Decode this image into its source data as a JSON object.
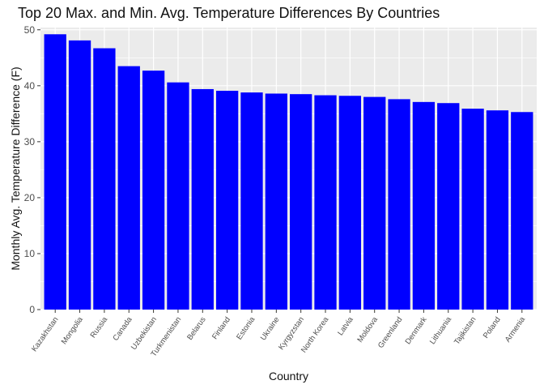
{
  "chart_data": {
    "type": "bar",
    "title": "Top 20 Max. and Min. Avg. Temperature Differences By Countries",
    "xlabel": "Country",
    "ylabel": "Monthly Avg. Temperature Difference (F)",
    "categories": [
      "Kazakhstan",
      "Mongolia",
      "Russia",
      "Canada",
      "Uzbekistan",
      "Turkmenistan",
      "Belarus",
      "Finland",
      "Estonia",
      "Ukraine",
      "Kyrgyzstan",
      "North Korea",
      "Latvia",
      "Moldova",
      "Greenland",
      "Denmark",
      "Lithuania",
      "Tajikistan",
      "Poland",
      "Armenia"
    ],
    "values": [
      49.2,
      48.1,
      46.7,
      43.5,
      42.7,
      40.6,
      39.4,
      39.1,
      38.8,
      38.6,
      38.5,
      38.3,
      38.2,
      38.0,
      37.6,
      37.1,
      36.9,
      35.9,
      35.6,
      35.3
    ],
    "ylim": [
      0,
      50.4
    ],
    "yticks": [
      0,
      10,
      20,
      30,
      40,
      50
    ],
    "grid": true,
    "bar_color": "#0000ff",
    "panel_background": "#ebebeb",
    "grid_color": "#ffffff"
  }
}
